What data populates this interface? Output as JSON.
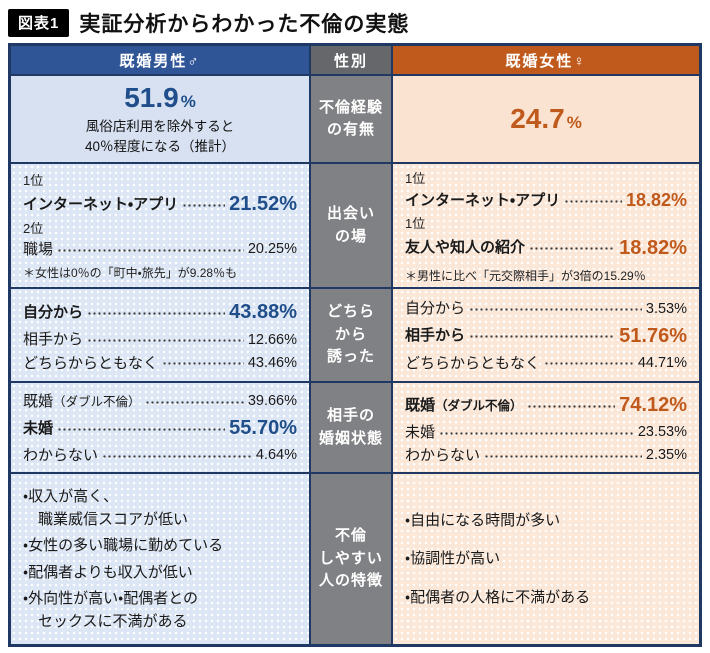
{
  "title_bar": {
    "tag": "図表1",
    "title": "実証分析からわかった不倫の実態"
  },
  "header": {
    "men": "既婚男性♂",
    "gender": "性別",
    "women": "既婚女性♀"
  },
  "colors": {
    "men_accent": "#1f4e8a",
    "women_accent": "#c05a1c",
    "border": "#1f3864"
  },
  "experience": {
    "row_label": "不倫経験\nの有無",
    "men": {
      "value": "51.9",
      "unit": "%",
      "note": "風俗店利用を除外すると\n40％程度になる（推計）"
    },
    "women": {
      "value": "24.7",
      "unit": "%"
    }
  },
  "meeting": {
    "row_label": "出会い\nの場",
    "men": {
      "rank1": "1位",
      "item1": "インターネット・アプリ",
      "value1": "21.52%",
      "rank2": "2位",
      "item2": "職場",
      "value2": "20.25%",
      "note": "＊女性は0％の「町中・旅先」が9.28％も"
    },
    "women": {
      "rank1": "1位",
      "item1": "インターネット・アプリ",
      "value1": "18.82%",
      "rank2": "1位",
      "item2": "友人や知人の紹介",
      "value2": "18.82%",
      "note": "＊男性に比べ「元交際相手」が3倍の15.29％"
    }
  },
  "initiator": {
    "row_label": "どちら\nから\n誘った",
    "men": [
      {
        "label": "自分から",
        "value": "43.88%"
      },
      {
        "label": "相手から",
        "value": "12.66%"
      },
      {
        "label": "どちらからともなく",
        "value": "43.46%"
      }
    ],
    "women": [
      {
        "label": "自分から",
        "value": "3.53%"
      },
      {
        "label": "相手から",
        "value": "51.76%"
      },
      {
        "label": "どちらからともなく",
        "value": "44.71%"
      }
    ]
  },
  "marital": {
    "row_label": "相手の\n婚姻状態",
    "men": [
      {
        "label": "既婚",
        "sub": "（ダブル不倫）",
        "value": "39.66%"
      },
      {
        "label": "未婚",
        "sub": "",
        "value": "55.70%"
      },
      {
        "label": "わからない",
        "sub": "",
        "value": "4.64%"
      }
    ],
    "women": [
      {
        "label": "既婚",
        "sub": "（ダブル不倫）",
        "value": "74.12%"
      },
      {
        "label": "未婚",
        "sub": "",
        "value": "23.53%"
      },
      {
        "label": "わからない",
        "sub": "",
        "value": "2.35%"
      }
    ]
  },
  "features": {
    "row_label": "不倫\nしやすい\n人の特徴",
    "men": [
      "・収入が高く、\n　職業威信スコアが低い",
      "・女性の多い職場に勤めている",
      "・配偶者よりも収入が低い",
      "・外向性が高い・配偶者との\n　セックスに不満がある"
    ],
    "women": [
      "・自由になる時間が多い",
      "・協調性が高い",
      "・配偶者の人格に不満がある"
    ]
  },
  "chart_data": {
    "type": "table",
    "title": "実証分析からわかった不倫の実態",
    "columns": [
      "既婚男性♂",
      "既婚女性♀"
    ],
    "unit": "%",
    "rows": [
      {
        "category": "不倫経験の有無",
        "men": {
          "不倫経験あり": 51.9,
          "備考": "風俗店利用を除外すると40％程度になる（推計）"
        },
        "women": {
          "不倫経験あり": 24.7
        }
      },
      {
        "category": "出会いの場",
        "men": {
          "インターネット・アプリ": 21.52,
          "職場": 20.25,
          "町中・旅先": 9.28
        },
        "women": {
          "インターネット・アプリ": 18.82,
          "友人や知人の紹介": 18.82,
          "元交際相手": 15.29
        }
      },
      {
        "category": "どちらから誘った",
        "men": {
          "自分から": 43.88,
          "相手から": 12.66,
          "どちらからともなく": 43.46
        },
        "women": {
          "自分から": 3.53,
          "相手から": 51.76,
          "どちらからともなく": 44.71
        }
      },
      {
        "category": "相手の婚姻状態",
        "men": {
          "既婚（ダブル不倫）": 39.66,
          "未婚": 55.7,
          "わからない": 4.64
        },
        "women": {
          "既婚（ダブル不倫）": 74.12,
          "未婚": 23.53,
          "わからない": 2.35
        }
      },
      {
        "category": "不倫しやすい人の特徴",
        "men": [
          "収入が高く、職業威信スコアが低い",
          "女性の多い職場に勤めている",
          "配偶者よりも収入が低い",
          "外向性が高い・配偶者とのセックスに不満がある"
        ],
        "women": [
          "自由になる時間が多い",
          "協調性が高い",
          "配偶者の人格に不満がある"
        ]
      }
    ]
  }
}
